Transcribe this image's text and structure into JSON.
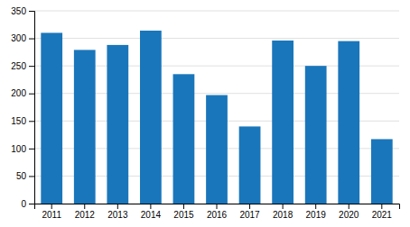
{
  "chart_data": {
    "type": "bar",
    "categories": [
      "2011",
      "2012",
      "2013",
      "2014",
      "2015",
      "2016",
      "2017",
      "2018",
      "2019",
      "2020",
      "2021"
    ],
    "values": [
      310,
      279,
      288,
      314,
      235,
      197,
      140,
      296,
      250,
      295,
      117
    ],
    "color": "#1A76BB",
    "ylim": [
      0,
      350
    ],
    "yticks": [
      0,
      50,
      100,
      150,
      200,
      250,
      300,
      350
    ],
    "grid": true
  }
}
